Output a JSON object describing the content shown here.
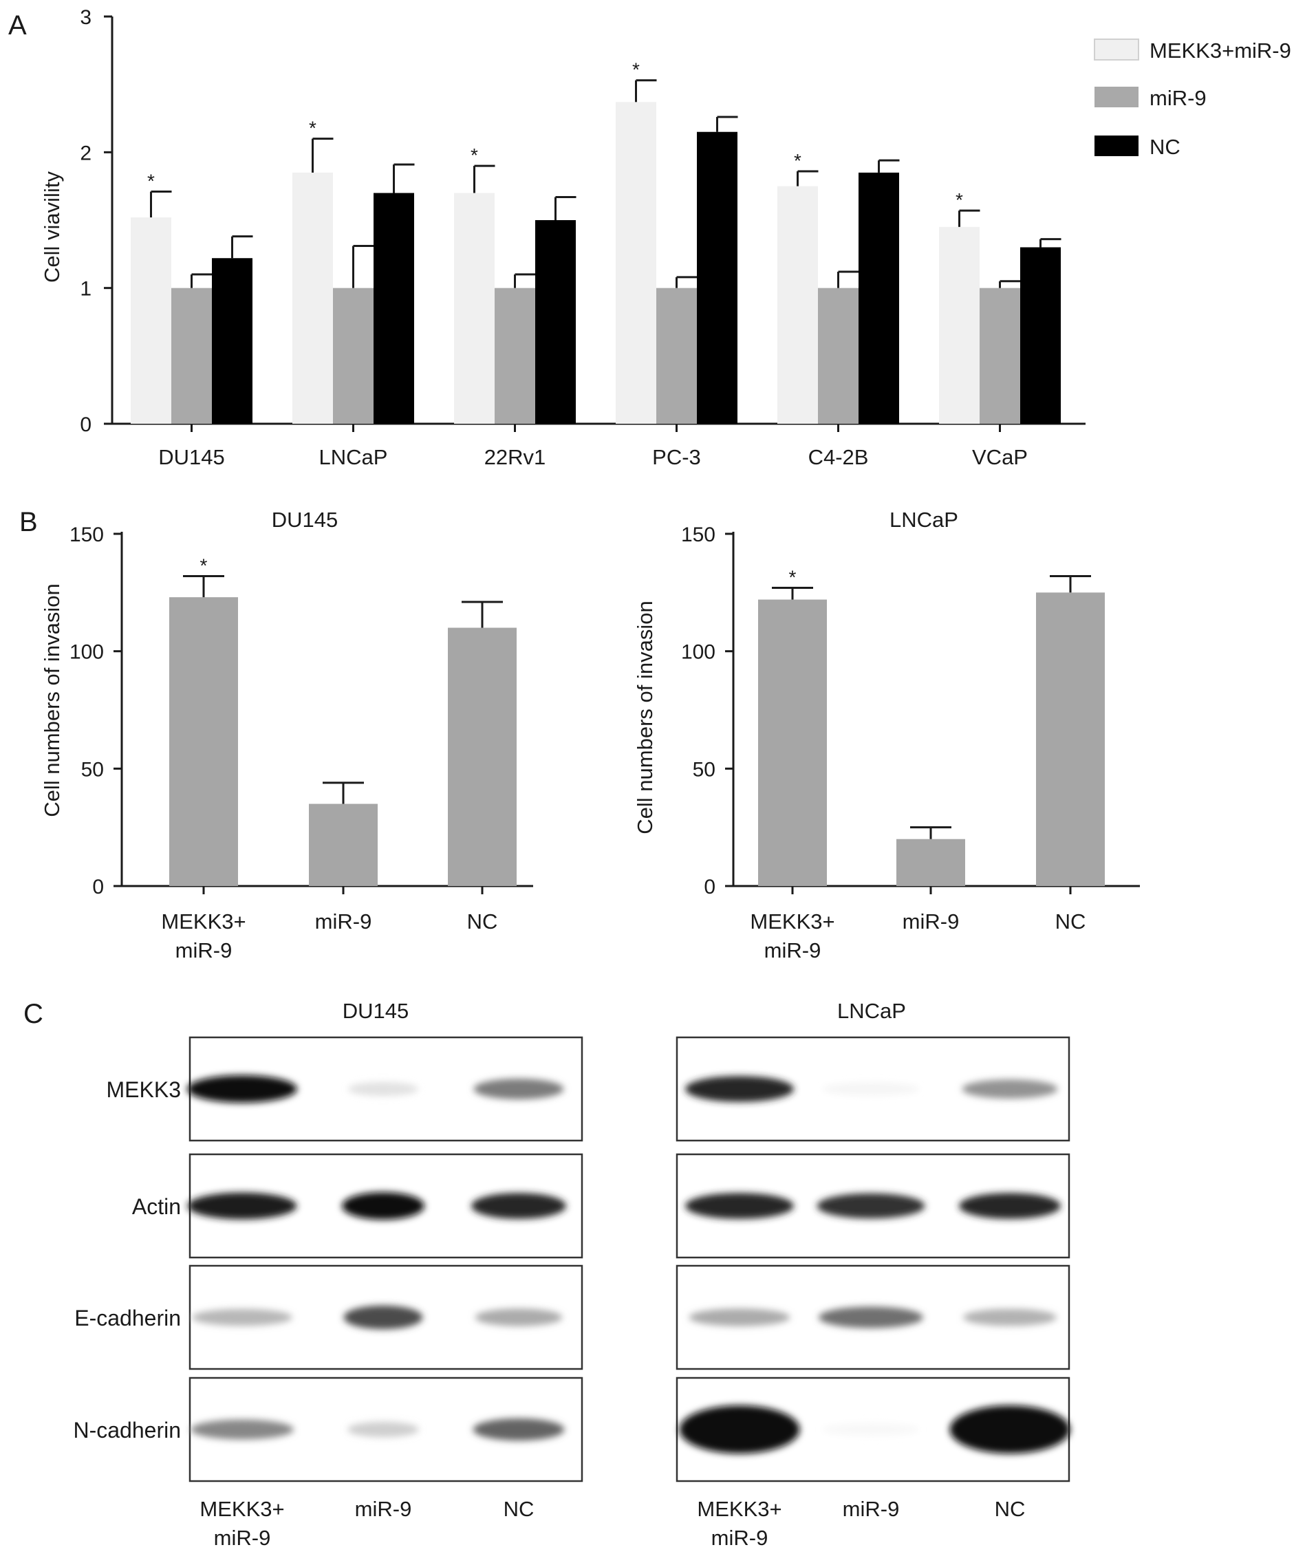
{
  "panels": {
    "a": "A",
    "b": "B",
    "c": "C"
  },
  "colors": {
    "mekk3_mir9": "#f0f0f0",
    "mir9": "#a9a9a9",
    "nc": "#000000",
    "invasion_bar": "#a6a6a6",
    "axis": "#1a1a1a"
  },
  "chart_data": [
    {
      "type": "bar",
      "panel": "A",
      "ylabel": "Cell viavility",
      "ylim": [
        0,
        3
      ],
      "yticks": [
        0,
        1,
        2,
        3
      ],
      "categories": [
        "DU145",
        "LNCaP",
        "22Rv1",
        "PC-3",
        "C4-2B",
        "VCaP"
      ],
      "series": [
        {
          "name": "MEKK3+miR-9",
          "values": [
            1.52,
            1.85,
            1.7,
            2.37,
            1.75,
            1.45
          ],
          "errors": [
            0.19,
            0.25,
            0.2,
            0.16,
            0.11,
            0.12
          ],
          "significance": [
            "*",
            "*",
            "*",
            "*",
            "*",
            "*"
          ]
        },
        {
          "name": "miR-9",
          "values": [
            1.0,
            1.0,
            1.0,
            1.0,
            1.0,
            1.0
          ],
          "errors": [
            0.1,
            0.31,
            0.1,
            0.08,
            0.12,
            0.05
          ]
        },
        {
          "name": "NC",
          "values": [
            1.22,
            1.7,
            1.5,
            2.15,
            1.85,
            1.3
          ],
          "errors": [
            0.16,
            0.21,
            0.17,
            0.11,
            0.09,
            0.06
          ]
        }
      ],
      "legend": "top-right"
    },
    {
      "type": "bar",
      "panel": "B",
      "title": "DU145",
      "ylabel": "Cell numbers of invasion",
      "ylim": [
        0,
        150
      ],
      "yticks": [
        0,
        50,
        100,
        150
      ],
      "categories": [
        [
          "MEKK3+",
          "miR-9"
        ],
        [
          "miR-9"
        ],
        [
          "NC"
        ]
      ],
      "values": [
        123,
        35,
        110
      ],
      "errors": [
        9,
        9,
        11
      ],
      "significance": [
        "*",
        "",
        ""
      ]
    },
    {
      "type": "bar",
      "panel": "B",
      "title": "LNCaP",
      "ylabel": "Cell numbers of invasion",
      "ylim": [
        0,
        150
      ],
      "yticks": [
        0,
        50,
        100,
        150
      ],
      "categories": [
        [
          "MEKK3+",
          "miR-9"
        ],
        [
          "miR-9"
        ],
        [
          "NC"
        ]
      ],
      "values": [
        122,
        20,
        125
      ],
      "errors": [
        5,
        5,
        7
      ],
      "significance": [
        "*",
        "",
        ""
      ]
    }
  ],
  "blots": {
    "rows": [
      "MEKK3",
      "Actin",
      "E-cadherin",
      "N-cadherin"
    ],
    "lanes": [
      [
        "MEKK3+",
        "miR-9"
      ],
      [
        "miR-9"
      ],
      [
        "NC"
      ]
    ],
    "du145": {
      "title": "DU145",
      "intensity": [
        [
          1.0,
          0.12,
          0.55
        ],
        [
          0.95,
          1.0,
          0.9
        ],
        [
          0.3,
          0.75,
          0.35
        ],
        [
          0.5,
          0.2,
          0.65
        ]
      ]
    },
    "lncap": {
      "title": "LNCaP",
      "intensity": [
        [
          0.9,
          0.04,
          0.45
        ],
        [
          0.9,
          0.85,
          0.9
        ],
        [
          0.35,
          0.6,
          0.32
        ],
        [
          1.0,
          0.03,
          1.0
        ]
      ]
    }
  }
}
